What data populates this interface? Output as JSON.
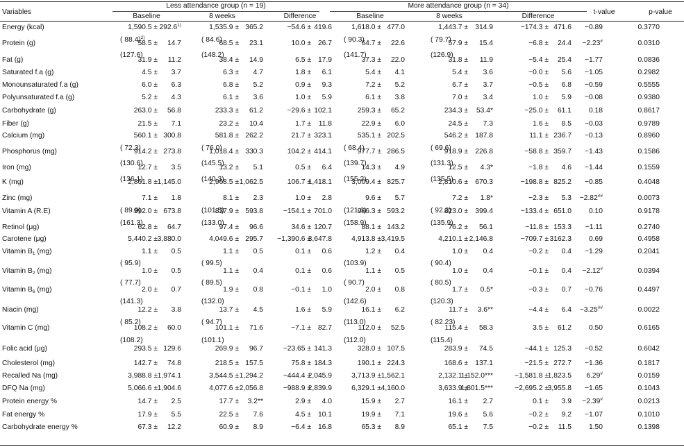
{
  "header": {
    "variables": "Variables",
    "less_group": "Less attendance group (n = 19)",
    "more_group": "More attendance group (n = 34)",
    "baseline": "Baseline",
    "weeks8": "8 weeks",
    "difference": "Difference",
    "t_value": "t-value",
    "p_value": "p-value"
  },
  "rows": [
    {
      "label": "Energy (kcal)",
      "c": [
        [
          "1,590.5 ±",
          "292.6",
          "1)"
        ],
        [
          "1,535.9 ±",
          "365.2",
          ""
        ],
        [
          "−54.6 ±",
          "419.6",
          ""
        ],
        [
          "1,618.0 ±",
          "477.0",
          ""
        ],
        [
          "1,443.7 ±",
          "314.9",
          ""
        ],
        [
          "−174.3 ±",
          "471.6",
          ""
        ]
      ],
      "t": "−0.89",
      "p": "0.3770",
      "sub": [
        "( 88.4)",
        "( 84.6)",
        "",
        "( 90.3)",
        "( 79.7)",
        ""
      ],
      "subsup": "2)"
    },
    {
      "label": "Protein (g)",
      "c": [
        [
          "58.5 ±",
          "14.7",
          ""
        ],
        [
          "68.5 ±",
          "23.1",
          ""
        ],
        [
          "10.0 ±",
          "26.7",
          ""
        ],
        [
          "64.7 ±",
          "22.6",
          ""
        ],
        [
          "57.9 ±",
          "15.4",
          ""
        ],
        [
          "−6.8 ±",
          "24.4",
          ""
        ]
      ],
      "t": "−2.23",
      "tsup": "#",
      "p": "0.0310",
      "sub": [
        "(127.6)",
        "(148.2)",
        "",
        "(141.7)",
        "(126.9)",
        ""
      ]
    },
    {
      "label": "Fat (g)",
      "c": [
        [
          "31.9 ±",
          "11.2",
          ""
        ],
        [
          "38.4 ±",
          "14.9",
          ""
        ],
        [
          "6.5 ±",
          "17.9",
          ""
        ],
        [
          "37.3 ±",
          "22.0",
          ""
        ],
        [
          "31.8 ±",
          "11.9",
          ""
        ],
        [
          "−5.4 ±",
          "25.4",
          ""
        ]
      ],
      "t": "−1.77",
      "p": "0.0836"
    },
    {
      "label": "Saturated f.a (g)",
      "c": [
        [
          "4.5 ±",
          "3.7",
          ""
        ],
        [
          "6.3 ±",
          "4.7",
          ""
        ],
        [
          "1.8 ±",
          "6.1",
          ""
        ],
        [
          "5.4 ±",
          "4.1",
          ""
        ],
        [
          "5.4 ±",
          "3.6",
          ""
        ],
        [
          "−0.0 ±",
          "5.6",
          ""
        ]
      ],
      "t": "−1.05",
      "p": "0.2982"
    },
    {
      "label": "Monounsaturated f.a (g)",
      "c": [
        [
          "6.0 ±",
          "6.3",
          ""
        ],
        [
          "6.8 ±",
          "5.2",
          ""
        ],
        [
          "0.9 ±",
          "9.3",
          ""
        ],
        [
          "7.2 ±",
          "5.2",
          ""
        ],
        [
          "6.7 ±",
          "3.7",
          ""
        ],
        [
          "−0.5 ±",
          "6.8",
          ""
        ]
      ],
      "t": "−0.59",
      "p": "0.5555"
    },
    {
      "label": "Polyunsaturated f.a (g)",
      "c": [
        [
          "5.2 ±",
          "4.3",
          ""
        ],
        [
          "6.1 ±",
          "3.6",
          ""
        ],
        [
          "1.0 ±",
          "5.9",
          ""
        ],
        [
          "6.1 ±",
          "3.8",
          ""
        ],
        [
          "7.0 ±",
          "3.4",
          ""
        ],
        [
          "1.0 ±",
          "5.9",
          ""
        ]
      ],
      "t": "−0.08",
      "p": "0.9380"
    },
    {
      "label": "Carbohydrate (g)",
      "c": [
        [
          "263.0 ±",
          "56.8",
          ""
        ],
        [
          "233.3 ±",
          "61.2",
          ""
        ],
        [
          "−29.6 ±",
          "102.1",
          ""
        ],
        [
          "259.3 ±",
          "65.2",
          ""
        ],
        [
          "234.3 ±",
          "53.4*",
          ""
        ],
        [
          "−25.0 ±",
          "61.1",
          ""
        ]
      ],
      "t": "0.18",
      "p": "0.8617"
    },
    {
      "label": "Fiber (g)",
      "c": [
        [
          "21.5 ±",
          "7.1",
          ""
        ],
        [
          "23.2 ±",
          "10.4",
          ""
        ],
        [
          "1.7 ±",
          "11.8",
          ""
        ],
        [
          "22.9 ±",
          "6.0",
          ""
        ],
        [
          "24.5 ±",
          "7.3",
          ""
        ],
        [
          "1.6 ±",
          "8.5",
          ""
        ]
      ],
      "t": "−0.03",
      "p": "0.9789"
    },
    {
      "label": "Calcium (mg)",
      "c": [
        [
          "560.1 ±",
          "300.8",
          ""
        ],
        [
          "581.8 ±",
          "262.2",
          ""
        ],
        [
          "21.7 ±",
          "323.1",
          ""
        ],
        [
          "535.1 ±",
          "202.5",
          ""
        ],
        [
          "546.2 ±",
          "187.8",
          ""
        ],
        [
          "11.1 ±",
          "236.7",
          ""
        ]
      ],
      "t": "−0.13",
      "p": "0.8960",
      "sub": [
        "( 72.3)",
        "( 76.0)",
        "",
        "( 68.4)",
        "( 69.6)",
        ""
      ]
    },
    {
      "label": "Phosphorus (mg)",
      "c": [
        [
          "914.2 ±",
          "273.8",
          ""
        ],
        [
          "1,018.4 ±",
          "330.3",
          ""
        ],
        [
          "104.2 ±",
          "414.1",
          ""
        ],
        [
          "977.7 ±",
          "286.5",
          ""
        ],
        [
          "918.9 ±",
          "226.8",
          ""
        ],
        [
          "−58.8 ±",
          "359.7",
          ""
        ]
      ],
      "t": "−1.43",
      "p": "0.1586",
      "sub": [
        "(130.6)",
        "(145.5)",
        "",
        "(139.7)",
        "(131.3)",
        ""
      ]
    },
    {
      "label": "Iron (mg)",
      "c": [
        [
          "12.7 ±",
          "3.5",
          ""
        ],
        [
          "13.2 ±",
          "5.1",
          ""
        ],
        [
          "0.5 ±",
          "6.4",
          ""
        ],
        [
          "14.3 ±",
          "4.9",
          ""
        ],
        [
          "12.5 ±",
          "4.3*",
          ""
        ],
        [
          "−1.8 ±",
          "4.6",
          ""
        ]
      ],
      "t": "−1.44",
      "p": "0.1559",
      "sub": [
        "(136.1)",
        "(140.3)",
        "",
        "(155.2)",
        "(135.5)",
        ""
      ]
    },
    {
      "label": "K (mg)",
      "c": [
        [
          "2,861.8 ±",
          "1,145.0",
          ""
        ],
        [
          "2,968.5 ±",
          "1,062.5",
          ""
        ],
        [
          "106.7 ±",
          "1,418.1",
          ""
        ],
        [
          "3,009.4 ±",
          "825.7",
          ""
        ],
        [
          "2,810.6 ±",
          "670.3",
          ""
        ],
        [
          "−198.8 ±",
          "825.2",
          ""
        ]
      ],
      "t": "−0.85",
      "p": "0.4048"
    },
    {
      "label": "Zinc (mg)",
      "c": [
        [
          "7.1 ±",
          "1.8",
          ""
        ],
        [
          "8.1 ±",
          "2.3",
          ""
        ],
        [
          "1.0 ±",
          "2.8",
          ""
        ],
        [
          "9.6 ±",
          "5.7",
          ""
        ],
        [
          "7.2 ±",
          "1.8*",
          ""
        ],
        [
          "−2.3 ±",
          "5.3",
          ""
        ]
      ],
      "t": "−2.82",
      "tsup": "##",
      "p": "0.0073",
      "sub": [
        "( 89.9)",
        "(101.5)",
        "",
        "(121.6)",
        "( 92.3)",
        ""
      ]
    },
    {
      "label": "Vitamin A (R.E)",
      "c": [
        [
          "992.0 ±",
          "673.8",
          ""
        ],
        [
          "837.9 ±",
          "593.8",
          ""
        ],
        [
          "−154.1 ±",
          "701.0",
          ""
        ],
        [
          "966.3 ±",
          "593.2",
          ""
        ],
        [
          "823.0 ±",
          "399.4",
          ""
        ],
        [
          "−133.4 ±",
          "651.0",
          ""
        ]
      ],
      "t": "0.10",
      "p": "0.9178",
      "sub": [
        "(161.3)",
        "(133.0)",
        "",
        "(158.9)",
        "(135.9)",
        ""
      ]
    },
    {
      "label": "Retinol (μg)",
      "c": [
        [
          "62.8 ±",
          "64.7",
          ""
        ],
        [
          "97.4 ±",
          "96.6",
          ""
        ],
        [
          "34.6 ±",
          "120.7",
          ""
        ],
        [
          "88.1 ±",
          "143.2",
          ""
        ],
        [
          "76.2 ±",
          "56.1",
          ""
        ],
        [
          "−11.8 ±",
          "153.3",
          ""
        ]
      ],
      "t": "−1.11",
      "p": "0.2740"
    },
    {
      "label": "Carotene (μg)",
      "c": [
        [
          "5,440.2 ±",
          "3,880.0",
          ""
        ],
        [
          "4,049.6 ±",
          "295.7",
          ""
        ],
        [
          "−1,390.6 ±",
          "3,647.8",
          ""
        ],
        [
          "4,913.8 ±",
          "3,419.5",
          ""
        ],
        [
          "4,210.1 ±",
          "2,146.8",
          ""
        ],
        [
          "−709.7 ±",
          "3162.3",
          ""
        ]
      ],
      "t": "0.69",
      "p": "0.4958"
    },
    {
      "label": "Vitamin B",
      "lsub": "1",
      "lsuffix": " (mg)",
      "c": [
        [
          "1.1 ±",
          "0.5",
          ""
        ],
        [
          "1.1 ±",
          "0.5",
          ""
        ],
        [
          "0.1 ±",
          "0.6",
          ""
        ],
        [
          "1.2 ±",
          "0.4",
          ""
        ],
        [
          "1.0 ±",
          "0.4",
          ""
        ],
        [
          "−0.2 ±",
          "0.4",
          ""
        ]
      ],
      "t": "−1.29",
      "p": "0.2041",
      "sub": [
        "( 95.9)",
        "( 99.5)",
        "",
        "(103.9)",
        "( 90.4)",
        ""
      ]
    },
    {
      "label": "Vitamin B",
      "lsub": "2",
      "lsuffix": " (mg)",
      "c": [
        [
          "1.0 ±",
          "0.5",
          ""
        ],
        [
          "1.1 ±",
          "0.4",
          ""
        ],
        [
          "0.1 ±",
          "0.6",
          ""
        ],
        [
          "1.1 ±",
          "0.5",
          ""
        ],
        [
          "1.0 ±",
          "0.4",
          ""
        ],
        [
          "−0.1 ±",
          "0.4",
          ""
        ]
      ],
      "t": "−2.12",
      "tsup": "#",
      "p": "0.0394",
      "sub": [
        "( 77.7)",
        "( 89.5)",
        "",
        "( 90.7)",
        "( 80.5)",
        ""
      ]
    },
    {
      "label": "Vitamin B",
      "lsub": "6",
      "lsuffix": " (mg)",
      "c": [
        [
          "2.0 ±",
          "0.7",
          ""
        ],
        [
          "1.9 ±",
          "0.8",
          ""
        ],
        [
          "−0.1 ±",
          "1.0",
          ""
        ],
        [
          "2.0 ±",
          "0.8",
          ""
        ],
        [
          "1.7 ±",
          "0.5*",
          ""
        ],
        [
          "−0.3 ±",
          "0.7",
          ""
        ]
      ],
      "t": "−0.76",
      "p": "0.4497",
      "sub": [
        "(141.3)",
        "(132.0)",
        "",
        "(142.6)",
        "(120.3)",
        ""
      ]
    },
    {
      "label": "Niacin (mg)",
      "c": [
        [
          "12.2 ±",
          "3.8",
          ""
        ],
        [
          "13.7 ±",
          "4.5",
          ""
        ],
        [
          "1.6 ±",
          "5.9",
          ""
        ],
        [
          "16.1 ±",
          "6.2",
          ""
        ],
        [
          "11.7 ±",
          "3.6**",
          ""
        ],
        [
          "−4.4 ±",
          "6.4",
          ""
        ]
      ],
      "t": "−3.25",
      "tsup": "##",
      "p": "0.0022",
      "sub": [
        "( 85.2)",
        "( 94.7)",
        "",
        "(113.0)",
        "( 82.23)",
        ""
      ]
    },
    {
      "label": "Vitamin C (mg)",
      "c": [
        [
          "108.2 ±",
          "60.0",
          ""
        ],
        [
          "101.1 ±",
          "71.6",
          ""
        ],
        [
          "−7.1 ±",
          "82.7",
          ""
        ],
        [
          "112.0 ±",
          "52.5",
          ""
        ],
        [
          "115.4 ±",
          "58.3",
          ""
        ],
        [
          "3.5 ±",
          "61.2",
          ""
        ]
      ],
      "t": "0.50",
      "p": "0.6165",
      "sub": [
        "(108.2)",
        "(101.1)",
        "",
        "(112.0)",
        "(115.4)",
        ""
      ]
    },
    {
      "label": "Folic acid (μg)",
      "c": [
        [
          "293.5 ±",
          "129.6",
          ""
        ],
        [
          "269.9 ±",
          "96.7",
          ""
        ],
        [
          "−23.65 ±",
          "141.3",
          ""
        ],
        [
          "328.0 ±",
          "107.5",
          ""
        ],
        [
          "283.9 ±",
          "74.5",
          ""
        ],
        [
          "−44.1 ±",
          "125.3",
          ""
        ]
      ],
      "t": "−0.52",
      "p": "0.6042"
    },
    {
      "label": "Cholesterol (mg)",
      "c": [
        [
          "142.7 ±",
          "74.8",
          ""
        ],
        [
          "218.5 ±",
          "157.5",
          ""
        ],
        [
          "75.8 ±",
          "184.3",
          ""
        ],
        [
          "190.1 ±",
          "224.3",
          ""
        ],
        [
          "168.6 ±",
          "137.1",
          ""
        ],
        [
          "−21.5 ±",
          "272.7",
          ""
        ]
      ],
      "t": "−1.36",
      "p": "0.1817"
    },
    {
      "label": "Recalled Na (mg)",
      "c": [
        [
          "3,988.8 ±",
          "1,974.1",
          ""
        ],
        [
          "3,544.5 ±",
          "1,294.2",
          ""
        ],
        [
          "−444.4 ±",
          "2,045.9",
          ""
        ],
        [
          "3,713.9 ±",
          "1,562.1",
          ""
        ],
        [
          "2,132.1 ±",
          "1,152.0***",
          ""
        ],
        [
          "−1,581.8 ±",
          "1,823.5",
          ""
        ]
      ],
      "t": "6.29",
      "tsup": "#",
      "p": "0.0159"
    },
    {
      "label": "DFQ Na (mg)",
      "c": [
        [
          "5,066.6 ±",
          "1,904.6",
          ""
        ],
        [
          "4,077.6 ±",
          "2,056.8",
          ""
        ],
        [
          "−988.9 ±",
          "2,839.9",
          ""
        ],
        [
          "6,329.1 ±",
          "4,160.0",
          ""
        ],
        [
          "3,633.9 ±",
          "1,801.5***",
          ""
        ],
        [
          "−2,695.2 ±",
          "3,955.8",
          ""
        ]
      ],
      "t": "−1.65",
      "p": "0.1043"
    },
    {
      "label": "Protein energy %",
      "c": [
        [
          "14.7 ±",
          "2.5",
          ""
        ],
        [
          "17.7 ±",
          "3.2**",
          ""
        ],
        [
          "2.9 ±",
          "4.0",
          ""
        ],
        [
          "15.9 ±",
          "2.7",
          ""
        ],
        [
          "16.1 ±",
          "2.7",
          ""
        ],
        [
          "0.1 ±",
          "3.9",
          ""
        ]
      ],
      "t": "−2.39",
      "tsup": "#",
      "p": "0.0213"
    },
    {
      "label": "Fat energy %",
      "c": [
        [
          "17.9 ±",
          "5.5",
          ""
        ],
        [
          "22.5 ±",
          "7.6",
          ""
        ],
        [
          "4.5 ±",
          "10.1",
          ""
        ],
        [
          "19.9 ±",
          "7.1",
          ""
        ],
        [
          "19.6 ±",
          "5.6",
          ""
        ],
        [
          "−0.2 ±",
          "9.2",
          ""
        ]
      ],
      "t": "−1.07",
      "p": "0.1010"
    },
    {
      "label": "Carbohydrate energy %",
      "c": [
        [
          "67.3 ±",
          "12.2",
          ""
        ],
        [
          "60.9 ±",
          "8.9",
          ""
        ],
        [
          "−6.4 ±",
          "16.8",
          ""
        ],
        [
          "65.3 ±",
          "8.9",
          ""
        ],
        [
          "65.1 ±",
          "7.5",
          ""
        ],
        [
          "−0.2 ±",
          "11.5",
          ""
        ]
      ],
      "t": "1.50",
      "p": "0.1398"
    }
  ]
}
